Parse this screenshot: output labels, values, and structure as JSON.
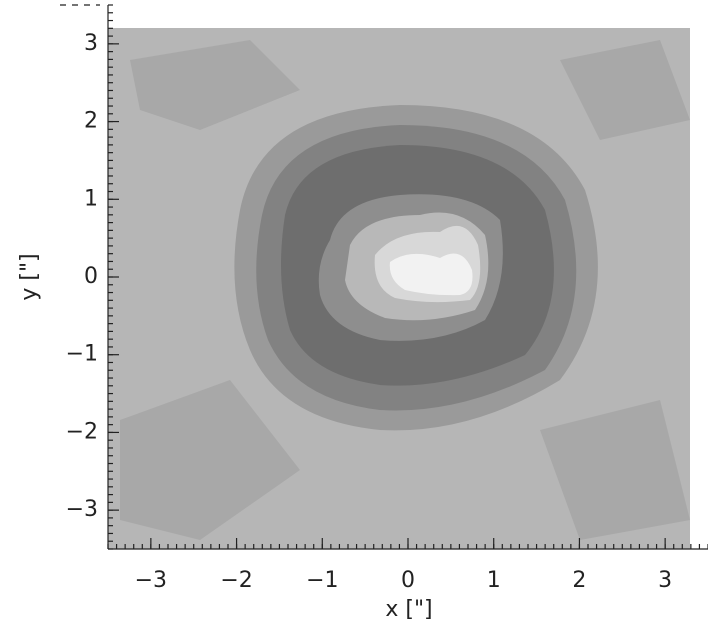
{
  "chart_data": {
    "type": "contour",
    "x_label": "x [\"]",
    "y_label": "y [\"]",
    "xlim": [
      -3.5,
      3.5
    ],
    "ylim": [
      -3.5,
      3.5
    ],
    "xticks": [
      {
        "value": -3,
        "label": "−3"
      },
      {
        "value": -2,
        "label": "−2"
      },
      {
        "value": -1,
        "label": "−1"
      },
      0,
      1,
      2,
      3
    ],
    "yticks": [
      {
        "value": -3,
        "label": "−3"
      },
      {
        "value": -2,
        "label": "−2"
      },
      {
        "value": -1,
        "label": "−1"
      },
      0,
      1,
      2,
      3
    ]
  }
}
